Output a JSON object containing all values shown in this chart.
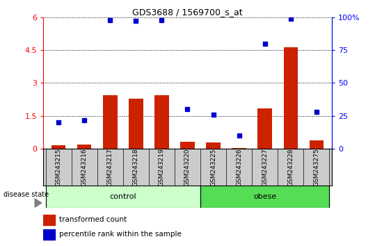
{
  "title": "GDS3688 / 1569700_s_at",
  "samples": [
    "GSM243215",
    "GSM243216",
    "GSM243217",
    "GSM243218",
    "GSM243219",
    "GSM243220",
    "GSM243225",
    "GSM243226",
    "GSM243227",
    "GSM243228",
    "GSM243275"
  ],
  "transformed_count": [
    0.15,
    0.18,
    2.45,
    2.3,
    2.45,
    0.32,
    0.28,
    0.05,
    1.85,
    4.62,
    0.38
  ],
  "percentile_rank": [
    20,
    22,
    98,
    97,
    98,
    30,
    26,
    10,
    80,
    99,
    28
  ],
  "control_count": 6,
  "obese_count": 5,
  "ylim_left": [
    0,
    6
  ],
  "ylim_right": [
    0,
    100
  ],
  "yticks_left": [
    0,
    1.5,
    3.0,
    4.5,
    6.0
  ],
  "ytick_labels_left": [
    "0",
    "1.5",
    "3",
    "4.5",
    "6"
  ],
  "yticks_right": [
    0,
    25,
    50,
    75,
    100
  ],
  "ytick_labels_right": [
    "0",
    "25",
    "50",
    "75",
    "100%"
  ],
  "bar_color": "#cc2200",
  "dot_color": "#0000cc",
  "control_bg": "#ccffcc",
  "obese_bg": "#55dd55",
  "tick_bg": "#cccccc",
  "label_bar": "transformed count",
  "label_dot": "percentile rank within the sample",
  "disease_state_label": "disease state",
  "control_label": "control",
  "obese_label": "obese",
  "bar_width": 0.55
}
